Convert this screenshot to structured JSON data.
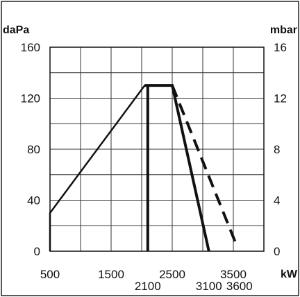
{
  "chart_data": {
    "type": "line",
    "title": "",
    "xlabel": "kW",
    "ylabel_left": "daPa",
    "ylabel_right": "mbar",
    "xlim": [
      500,
      4000
    ],
    "ylim": [
      0,
      160
    ],
    "ylim_right": [
      0,
      16
    ],
    "grid": true,
    "x_ticks_top": [
      {
        "value": 500,
        "label": "500"
      },
      {
        "value": 1500,
        "label": "1500"
      },
      {
        "value": 2500,
        "label": "2500"
      },
      {
        "value": 3500,
        "label": "3500"
      }
    ],
    "x_ticks_bottom": [
      {
        "value": 2100,
        "label": "2100"
      },
      {
        "value": 3100,
        "label": "3100"
      },
      {
        "value": 3600,
        "label": "3600"
      }
    ],
    "y_ticks_left": [
      {
        "value": 0,
        "label": "0"
      },
      {
        "value": 40,
        "label": "40"
      },
      {
        "value": 80,
        "label": "80"
      },
      {
        "value": 120,
        "label": "120"
      },
      {
        "value": 160,
        "label": "160"
      }
    ],
    "y_ticks_right": [
      {
        "value": 0,
        "label": "0"
      },
      {
        "value": 40,
        "label": "4"
      },
      {
        "value": 80,
        "label": "8"
      },
      {
        "value": 120,
        "label": "12"
      },
      {
        "value": 160,
        "label": "16"
      }
    ],
    "series": [
      {
        "style": "solid",
        "points": [
          [
            500,
            0
          ],
          [
            500,
            30
          ],
          [
            2050,
            130
          ],
          [
            2500,
            130
          ],
          [
            3100,
            0
          ]
        ]
      },
      {
        "style": "solid-thick",
        "points": [
          [
            2100,
            0
          ],
          [
            2100,
            130
          ]
        ]
      },
      {
        "style": "dashed",
        "points": [
          [
            2500,
            130
          ],
          [
            3550,
            5
          ]
        ]
      }
    ]
  }
}
